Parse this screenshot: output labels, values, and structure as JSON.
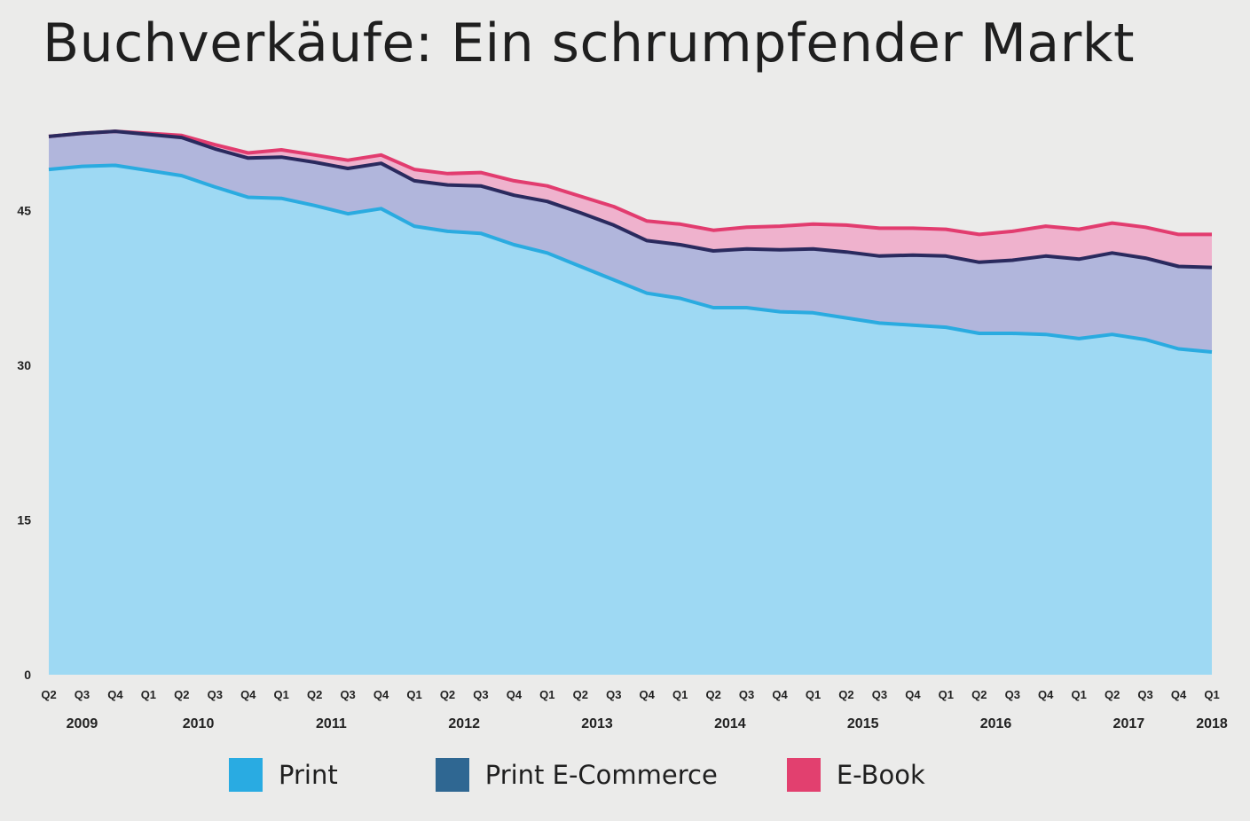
{
  "title": "Buchverkäufe: Ein schrumpfender Markt",
  "colors": {
    "print_fill": "#9ed9f3",
    "print_line": "#2aabe0",
    "ecommerce_fill": "#b1b6dc",
    "ecommerce_line": "#2a2a5e",
    "ebook_fill": "#efb2cd",
    "ebook_line": "#e23c6f",
    "legend_print": "#29abe2",
    "legend_ecommerce": "#2f6792",
    "legend_ebook": "#e2406f"
  },
  "legend": [
    {
      "label": "Print",
      "color_key": "legend_print"
    },
    {
      "label": "Print E-Commerce",
      "color_key": "legend_ecommerce"
    },
    {
      "label": "E-Book",
      "color_key": "legend_ebook"
    }
  ],
  "chart_data": {
    "type": "area",
    "stacked": true,
    "title": "Buchverkäufe: Ein schrumpfender Markt",
    "xlabel": "",
    "ylabel": "",
    "ylim": [
      0,
      52
    ],
    "yticks": [
      0,
      15,
      30,
      45
    ],
    "grid": false,
    "legend_position": "bottom",
    "quarters": [
      "Q2",
      "Q3",
      "Q4",
      "Q1",
      "Q2",
      "Q3",
      "Q4",
      "Q1",
      "Q2",
      "Q3",
      "Q4",
      "Q1",
      "Q2",
      "Q3",
      "Q4",
      "Q1",
      "Q2",
      "Q3",
      "Q4",
      "Q1",
      "Q2",
      "Q3",
      "Q4",
      "Q1",
      "Q2",
      "Q3",
      "Q4",
      "Q1",
      "Q2",
      "Q3",
      "Q4",
      "Q1",
      "Q2",
      "Q3",
      "Q4",
      "Q1"
    ],
    "year_labels": [
      {
        "label": "2009",
        "index": 1
      },
      {
        "label": "2010",
        "index": 4.5
      },
      {
        "label": "2011",
        "index": 8.5
      },
      {
        "label": "2012",
        "index": 12.5
      },
      {
        "label": "2013",
        "index": 16.5
      },
      {
        "label": "2014",
        "index": 20.5
      },
      {
        "label": "2015",
        "index": 24.5
      },
      {
        "label": "2016",
        "index": 28.5
      },
      {
        "label": "2017",
        "index": 32.5
      },
      {
        "label": "2018",
        "index": 35
      }
    ],
    "series": [
      {
        "name": "Print",
        "values": [
          49.0,
          49.3,
          49.4,
          48.9,
          48.4,
          47.3,
          46.3,
          46.2,
          45.5,
          44.7,
          45.2,
          43.5,
          43.0,
          42.8,
          41.7,
          40.9,
          39.6,
          38.3,
          37.0,
          36.5,
          35.6,
          35.6,
          35.2,
          35.1,
          34.6,
          34.1,
          33.9,
          33.7,
          33.1,
          33.1,
          33.0,
          32.6,
          33.0,
          32.5,
          31.6,
          31.3
        ]
      },
      {
        "name": "Print E-Commerce",
        "values": [
          3.2,
          3.2,
          3.3,
          3.5,
          3.7,
          3.7,
          3.8,
          4.0,
          4.2,
          4.4,
          4.4,
          4.4,
          4.5,
          4.6,
          4.8,
          5.0,
          5.2,
          5.3,
          5.1,
          5.2,
          5.5,
          5.7,
          6.0,
          6.2,
          6.4,
          6.5,
          6.8,
          6.9,
          6.9,
          7.1,
          7.6,
          7.7,
          7.9,
          7.9,
          8.0,
          8.2
        ]
      },
      {
        "name": "E-Book",
        "values": [
          0.0,
          0.0,
          0.0,
          0.1,
          0.2,
          0.4,
          0.5,
          0.7,
          0.7,
          0.8,
          0.8,
          1.1,
          1.1,
          1.3,
          1.4,
          1.5,
          1.6,
          1.8,
          1.9,
          2.0,
          2.0,
          2.1,
          2.3,
          2.4,
          2.6,
          2.7,
          2.6,
          2.6,
          2.7,
          2.8,
          2.9,
          2.9,
          2.9,
          3.0,
          3.1,
          3.2
        ]
      }
    ]
  }
}
